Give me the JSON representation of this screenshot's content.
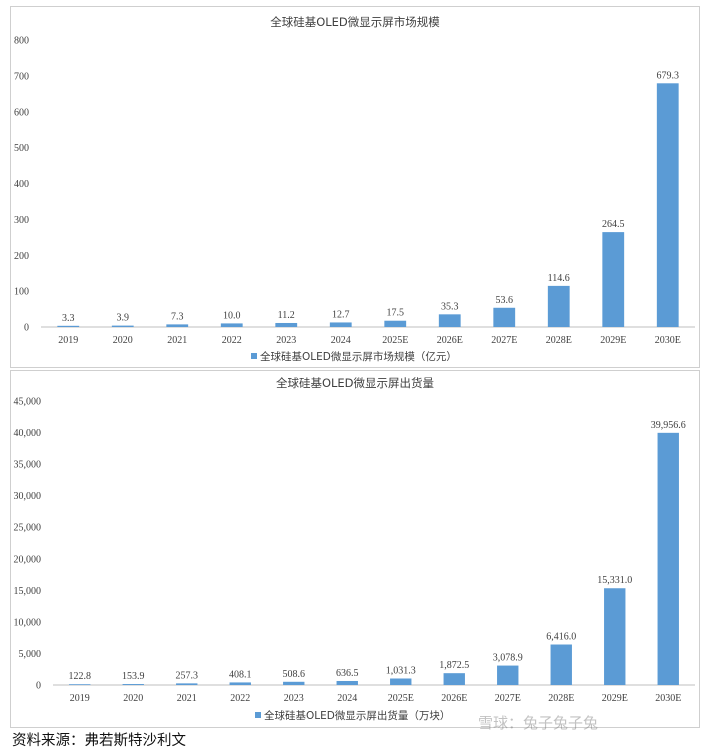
{
  "chart_data": [
    {
      "type": "bar",
      "title": "全球硅基OLED微显示屏市场规模",
      "categories": [
        "2019",
        "2020",
        "2021",
        "2022",
        "2023",
        "2024",
        "2025E",
        "2026E",
        "2027E",
        "2028E",
        "2029E",
        "2030E"
      ],
      "series": [
        {
          "name": "全球硅基OLED微显示屏市场规模（亿元）",
          "values": [
            3.3,
            3.9,
            7.3,
            10.0,
            11.2,
            12.7,
            17.5,
            35.3,
            53.6,
            114.6,
            264.5,
            679.3
          ],
          "labels": [
            "3.3",
            "3.9",
            "7.3",
            "10.0",
            "11.2",
            "12.7",
            "17.5",
            "35.3",
            "53.6",
            "114.6",
            "264.5",
            "679.3"
          ]
        }
      ],
      "ylim": [
        0,
        800
      ],
      "yticks": [
        "0",
        "100",
        "200",
        "300",
        "400",
        "500",
        "600",
        "700",
        "800"
      ],
      "legend": "bottom",
      "grid": false,
      "color": "#5b9bd5"
    },
    {
      "type": "bar",
      "title": "全球硅基OLED微显示屏出货量",
      "categories": [
        "2019",
        "2020",
        "2021",
        "2022",
        "2023",
        "2024",
        "2025E",
        "2026E",
        "2027E",
        "2028E",
        "2029E",
        "2030E"
      ],
      "series": [
        {
          "name": "全球硅基OLED微显示屏出货量（万块）",
          "values": [
            122.8,
            153.9,
            257.3,
            408.1,
            508.6,
            636.5,
            1031.3,
            1872.5,
            3078.9,
            6416.0,
            15331.0,
            39956.6
          ],
          "labels": [
            "122.8",
            "153.9",
            "257.3",
            "408.1",
            "508.6",
            "636.5",
            "1,031.3",
            "1,872.5",
            "3,078.9",
            "6,416.0",
            "15,331.0",
            "39,956.6"
          ]
        }
      ],
      "ylim": [
        0,
        45000
      ],
      "yticks": [
        "0",
        "5,000",
        "10,000",
        "15,000",
        "20,000",
        "25,000",
        "30,000",
        "35,000",
        "40,000",
        "45,000"
      ],
      "legend": "bottom",
      "grid": false,
      "color": "#5b9bd5"
    }
  ],
  "source_text": "资料来源：弗若斯特沙利文",
  "watermark_text": "雪球：兔子兔子兔"
}
